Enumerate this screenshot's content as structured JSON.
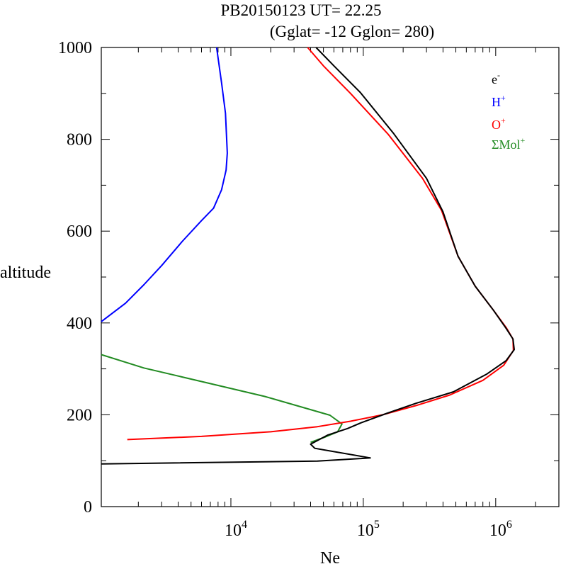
{
  "chart_data": {
    "type": "line",
    "title_line1": "PB20150123   UT=  22.25",
    "title_line2": "(Gglat= -12   Gglon=  280)",
    "xlabel": "Ne",
    "ylabel": "altitude",
    "x_scale": "log",
    "xlim": [
      1050,
      3000000
    ],
    "ylim": [
      0,
      1000
    ],
    "x_ticks": [
      {
        "value": 10000,
        "base": "10",
        "exp": "4"
      },
      {
        "value": 100000,
        "base": "10",
        "exp": "5"
      },
      {
        "value": 1000000,
        "base": "10",
        "exp": "6"
      }
    ],
    "y_ticks": [
      {
        "value": 0,
        "label": "0"
      },
      {
        "value": 200,
        "label": "200"
      },
      {
        "value": 400,
        "label": "400"
      },
      {
        "value": 600,
        "label": "600"
      },
      {
        "value": 800,
        "label": "800"
      },
      {
        "value": 1000,
        "label": "1000"
      }
    ],
    "legend_placement": "top-right",
    "grid": false,
    "series": [
      {
        "name": "e",
        "sup": "-",
        "color": "#000000",
        "points": [
          [
            1050,
            93
          ],
          [
            45000,
            99
          ],
          [
            113000,
            106
          ],
          [
            43000,
            127
          ],
          [
            40000,
            136
          ],
          [
            54000,
            156
          ],
          [
            76000,
            170
          ],
          [
            97000,
            183
          ],
          [
            150000,
            203
          ],
          [
            250000,
            225
          ],
          [
            480000,
            250
          ],
          [
            860000,
            289
          ],
          [
            1200000,
            318
          ],
          [
            1380000,
            342
          ],
          [
            1350000,
            365
          ],
          [
            1200000,
            388
          ],
          [
            960000,
            428
          ],
          [
            700000,
            480
          ],
          [
            520000,
            545
          ],
          [
            400000,
            642
          ],
          [
            300000,
            715
          ],
          [
            170000,
            812
          ],
          [
            95000,
            902
          ],
          [
            60000,
            960
          ],
          [
            44000,
            1000
          ]
        ]
      },
      {
        "name": "H",
        "sup": "+",
        "color": "#0000ff",
        "points": [
          [
            1050,
            403
          ],
          [
            1600,
            443
          ],
          [
            2200,
            483
          ],
          [
            3000,
            525
          ],
          [
            4300,
            578
          ],
          [
            6000,
            623
          ],
          [
            7400,
            650
          ],
          [
            8500,
            690
          ],
          [
            9200,
            733
          ],
          [
            9400,
            770
          ],
          [
            9100,
            857
          ],
          [
            8500,
            923
          ],
          [
            7800,
            1000
          ]
        ]
      },
      {
        "name": "O",
        "sup": "+",
        "color": "#ff0000",
        "points": [
          [
            1650,
            146
          ],
          [
            6000,
            153
          ],
          [
            20000,
            163
          ],
          [
            45000,
            174
          ],
          [
            80000,
            186
          ],
          [
            140000,
            200
          ],
          [
            250000,
            220
          ],
          [
            450000,
            243
          ],
          [
            800000,
            275
          ],
          [
            1150000,
            308
          ],
          [
            1360000,
            340
          ],
          [
            1350000,
            365
          ],
          [
            1200000,
            390
          ],
          [
            960000,
            428
          ],
          [
            700000,
            480
          ],
          [
            520000,
            545
          ],
          [
            390000,
            645
          ],
          [
            280000,
            715
          ],
          [
            155000,
            810
          ],
          [
            80000,
            900
          ],
          [
            50000,
            960
          ],
          [
            38000,
            1000
          ]
        ]
      },
      {
        "name": "ΣMol",
        "sup": "+",
        "color": "#228b22",
        "points": [
          [
            40000,
            140
          ],
          [
            52000,
            152
          ],
          [
            64000,
            163
          ],
          [
            69000,
            180
          ],
          [
            56000,
            199
          ],
          [
            18000,
            240
          ],
          [
            6500,
            270
          ],
          [
            2200,
            302
          ],
          [
            1050,
            331
          ]
        ]
      }
    ]
  }
}
